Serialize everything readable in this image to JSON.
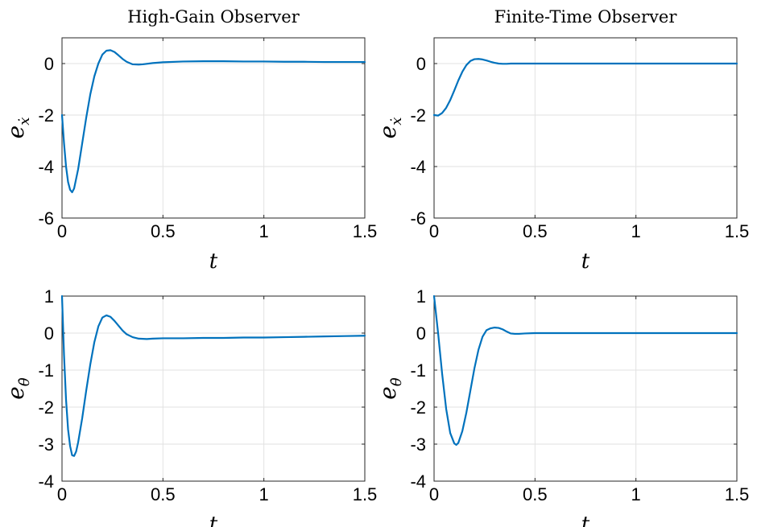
{
  "colors": {
    "series": "#0072bd",
    "grid": "#e2e2e2",
    "axis": "#262626"
  },
  "chart_data": [
    {
      "type": "line",
      "title": "High-Gain Observer",
      "xlabel": "t",
      "ylabel": {
        "base": "e",
        "sub": "ẋ"
      },
      "xlim": [
        0,
        1.5
      ],
      "ylim": [
        -6,
        1
      ],
      "xticks": [
        0,
        0.5,
        1,
        1.5
      ],
      "xtick_labels": [
        "0",
        "0.5",
        "1",
        "1.5"
      ],
      "yticks": [
        -6,
        -4,
        -2,
        0
      ],
      "ytick_labels": [
        "-6",
        "-4",
        "-2",
        "0"
      ],
      "grid": true,
      "series": [
        {
          "x": [
            0,
            0.01,
            0.02,
            0.03,
            0.04,
            0.05,
            0.06,
            0.08,
            0.1,
            0.12,
            0.14,
            0.16,
            0.18,
            0.2,
            0.22,
            0.24,
            0.26,
            0.28,
            0.3,
            0.32,
            0.35,
            0.38,
            0.4,
            0.45,
            0.5,
            0.6,
            0.7,
            0.8,
            0.9,
            1.0,
            1.1,
            1.2,
            1.3,
            1.4,
            1.5
          ],
          "y": [
            -2.0,
            -3.1,
            -4.0,
            -4.6,
            -4.9,
            -5.0,
            -4.85,
            -4.1,
            -3.1,
            -2.1,
            -1.2,
            -0.5,
            0.0,
            0.35,
            0.5,
            0.52,
            0.45,
            0.32,
            0.18,
            0.07,
            -0.03,
            -0.04,
            -0.03,
            0.02,
            0.05,
            0.08,
            0.09,
            0.09,
            0.08,
            0.08,
            0.07,
            0.07,
            0.06,
            0.06,
            0.06
          ]
        }
      ]
    },
    {
      "type": "line",
      "title": "Finite-Time Observer",
      "xlabel": "t",
      "ylabel": {
        "base": "e",
        "sub": "ẋ"
      },
      "xlim": [
        0,
        1.5
      ],
      "ylim": [
        -6,
        1
      ],
      "xticks": [
        0,
        0.5,
        1,
        1.5
      ],
      "xtick_labels": [
        "0",
        "0.5",
        "1",
        "1.5"
      ],
      "yticks": [
        -6,
        -4,
        -2,
        0
      ],
      "ytick_labels": [
        "-6",
        "-4",
        "-2",
        "0"
      ],
      "grid": true,
      "series": [
        {
          "x": [
            0,
            0.02,
            0.04,
            0.06,
            0.08,
            0.1,
            0.12,
            0.14,
            0.16,
            0.18,
            0.2,
            0.22,
            0.24,
            0.26,
            0.28,
            0.3,
            0.32,
            0.34,
            0.36,
            0.38,
            0.4,
            0.5,
            0.75,
            1.0,
            1.25,
            1.5
          ],
          "y": [
            -2.0,
            -2.02,
            -1.92,
            -1.72,
            -1.42,
            -1.05,
            -0.66,
            -0.32,
            -0.06,
            0.1,
            0.17,
            0.18,
            0.16,
            0.12,
            0.07,
            0.03,
            0.0,
            -0.01,
            -0.01,
            0.0,
            0.0,
            0.0,
            0.0,
            0.0,
            0.0,
            0.0
          ]
        }
      ]
    },
    {
      "type": "line",
      "title": "",
      "xlabel": "t",
      "ylabel": {
        "base": "e",
        "sub": "θ̇"
      },
      "xlim": [
        0,
        1.5
      ],
      "ylim": [
        -4,
        1
      ],
      "xticks": [
        0,
        0.5,
        1,
        1.5
      ],
      "xtick_labels": [
        "0",
        "0.5",
        "1",
        "1.5"
      ],
      "yticks": [
        -4,
        -3,
        -2,
        -1,
        0,
        1
      ],
      "ytick_labels": [
        "-4",
        "-3",
        "-2",
        "-1",
        "0",
        "1"
      ],
      "grid": true,
      "series": [
        {
          "x": [
            0,
            0.01,
            0.02,
            0.03,
            0.04,
            0.05,
            0.06,
            0.07,
            0.08,
            0.1,
            0.12,
            0.14,
            0.16,
            0.18,
            0.2,
            0.22,
            0.24,
            0.26,
            0.28,
            0.3,
            0.32,
            0.35,
            0.38,
            0.42,
            0.45,
            0.5,
            0.6,
            0.7,
            0.8,
            0.9,
            1.0,
            1.1,
            1.2,
            1.3,
            1.4,
            1.5
          ],
          "y": [
            1.0,
            -0.6,
            -1.8,
            -2.6,
            -3.05,
            -3.3,
            -3.32,
            -3.2,
            -2.95,
            -2.3,
            -1.55,
            -0.85,
            -0.25,
            0.18,
            0.42,
            0.48,
            0.44,
            0.33,
            0.2,
            0.07,
            -0.03,
            -0.11,
            -0.15,
            -0.16,
            -0.15,
            -0.14,
            -0.14,
            -0.13,
            -0.13,
            -0.12,
            -0.12,
            -0.11,
            -0.1,
            -0.09,
            -0.08,
            -0.07
          ]
        }
      ]
    },
    {
      "type": "line",
      "title": "",
      "xlabel": "t",
      "ylabel": {
        "base": "e",
        "sub": "θ̇"
      },
      "xlim": [
        0,
        1.5
      ],
      "ylim": [
        -4,
        1
      ],
      "xticks": [
        0,
        0.5,
        1,
        1.5
      ],
      "xtick_labels": [
        "0",
        "0.5",
        "1",
        "1.5"
      ],
      "yticks": [
        -4,
        -3,
        -2,
        -1,
        0,
        1
      ],
      "ytick_labels": [
        "-4",
        "-3",
        "-2",
        "-1",
        "0",
        "1"
      ],
      "grid": true,
      "series": [
        {
          "x": [
            0,
            0.02,
            0.04,
            0.06,
            0.08,
            0.1,
            0.11,
            0.12,
            0.14,
            0.16,
            0.18,
            0.2,
            0.22,
            0.24,
            0.26,
            0.28,
            0.3,
            0.32,
            0.34,
            0.36,
            0.38,
            0.4,
            0.42,
            0.45,
            0.5,
            0.75,
            1.0,
            1.25,
            1.5
          ],
          "y": [
            1.0,
            0.0,
            -1.1,
            -2.05,
            -2.7,
            -2.98,
            -3.02,
            -2.97,
            -2.65,
            -2.15,
            -1.55,
            -0.95,
            -0.45,
            -0.1,
            0.08,
            0.13,
            0.15,
            0.14,
            0.1,
            0.04,
            -0.01,
            -0.02,
            -0.02,
            -0.01,
            0.0,
            0.0,
            0.0,
            0.0,
            0.0
          ]
        }
      ]
    }
  ]
}
